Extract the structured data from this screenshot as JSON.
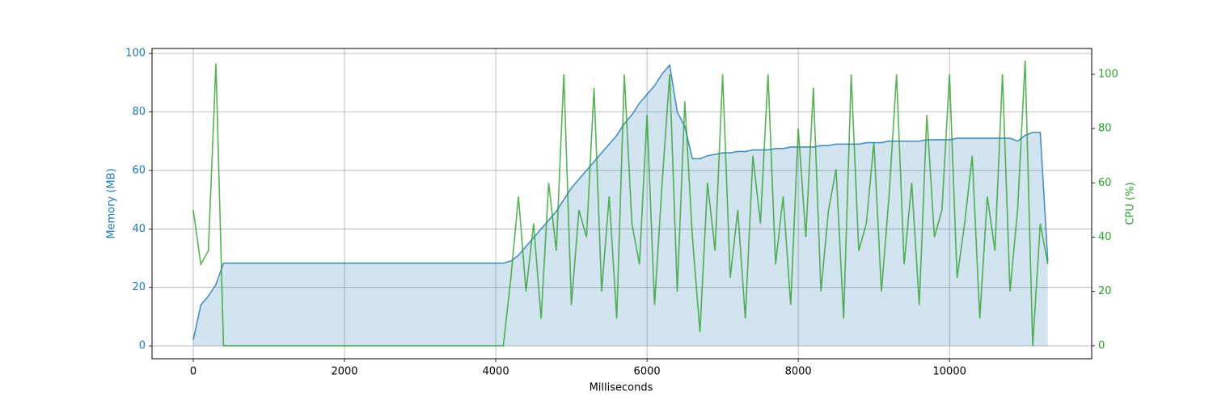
{
  "chart_data": {
    "type": "line",
    "xlabel": "Milliseconds",
    "ylabel": "Memory (MB)",
    "y2label": "CPU (%)",
    "x": [
      0,
      100,
      200,
      300,
      400,
      500,
      600,
      700,
      800,
      900,
      1000,
      1100,
      1200,
      1300,
      1400,
      1500,
      1600,
      1700,
      1800,
      1900,
      2000,
      2100,
      2200,
      2300,
      2400,
      2500,
      2600,
      2700,
      2800,
      2900,
      3000,
      3100,
      3200,
      3300,
      3400,
      3500,
      3600,
      3700,
      3800,
      3900,
      4000,
      4100,
      4200,
      4300,
      4400,
      4500,
      4600,
      4700,
      4800,
      4900,
      5000,
      5100,
      5200,
      5300,
      5400,
      5500,
      5600,
      5700,
      5800,
      5900,
      6000,
      6100,
      6200,
      6300,
      6400,
      6500,
      6600,
      6700,
      6800,
      6900,
      7000,
      7100,
      7200,
      7300,
      7400,
      7500,
      7600,
      7700,
      7800,
      7900,
      8000,
      8100,
      8200,
      8300,
      8400,
      8500,
      8600,
      8700,
      8800,
      8900,
      9000,
      9100,
      9200,
      9300,
      9400,
      9500,
      9600,
      9700,
      9800,
      9900,
      10000,
      10100,
      10200,
      10300,
      10400,
      10500,
      10600,
      10700,
      10800,
      10900,
      11000,
      11100,
      11200,
      11300
    ],
    "series": [
      {
        "name": "Memory",
        "color": "#1f77b4",
        "fill": true,
        "axis": "y",
        "values": [
          2,
          14,
          17,
          21,
          28.3,
          28.3,
          28.3,
          28.3,
          28.3,
          28.3,
          28.3,
          28.3,
          28.3,
          28.3,
          28.3,
          28.3,
          28.3,
          28.3,
          28.3,
          28.3,
          28.3,
          28.3,
          28.3,
          28.3,
          28.3,
          28.3,
          28.3,
          28.3,
          28.3,
          28.3,
          28.3,
          28.3,
          28.3,
          28.3,
          28.3,
          28.3,
          28.3,
          28.3,
          28.3,
          28.3,
          28.3,
          28.3,
          29,
          31,
          34,
          37,
          40,
          43,
          46,
          50,
          54,
          57,
          60,
          63,
          66,
          69,
          72,
          76,
          79,
          83,
          86,
          89,
          93,
          96,
          80,
          75,
          64,
          64,
          65,
          65.5,
          66,
          66,
          66.5,
          66.5,
          67,
          67,
          67,
          67.5,
          67.5,
          68,
          68,
          68,
          68,
          68.5,
          68.5,
          69,
          69,
          69,
          69,
          69.5,
          69.5,
          69.5,
          70,
          70,
          70,
          70,
          70,
          70.5,
          70.5,
          70.5,
          70.5,
          71,
          71,
          71,
          71,
          71,
          71,
          71,
          71,
          70,
          72,
          73,
          73,
          29
        ]
      },
      {
        "name": "CPU",
        "color": "#2ca02c",
        "fill": false,
        "axis": "y2",
        "values": [
          50,
          30,
          35,
          104,
          0,
          0,
          0,
          0,
          0,
          0,
          0,
          0,
          0,
          0,
          0,
          0,
          0,
          0,
          0,
          0,
          0,
          0,
          0,
          0,
          0,
          0,
          0,
          0,
          0,
          0,
          0,
          0,
          0,
          0,
          0,
          0,
          0,
          0,
          0,
          0,
          0,
          0,
          25,
          55,
          20,
          45,
          10,
          60,
          35,
          100,
          15,
          50,
          40,
          95,
          20,
          55,
          10,
          100,
          45,
          30,
          85,
          15,
          60,
          100,
          20,
          90,
          40,
          5,
          60,
          35,
          100,
          25,
          50,
          10,
          70,
          45,
          100,
          30,
          55,
          15,
          80,
          40,
          95,
          20,
          50,
          65,
          10,
          100,
          35,
          45,
          75,
          20,
          55,
          100,
          30,
          60,
          15,
          85,
          40,
          50,
          100,
          25,
          45,
          70,
          10,
          55,
          35,
          100,
          20,
          50,
          105,
          0,
          45,
          30
        ]
      }
    ],
    "xlim": [
      -545,
      11880
    ],
    "xticks": [
      0,
      2000,
      4000,
      6000,
      8000,
      10000
    ],
    "ylim": [
      -4.4,
      101.7
    ],
    "yticks": [
      0,
      20,
      40,
      60,
      80,
      100
    ],
    "y2lim": [
      -4.8,
      109.5
    ],
    "y2ticks": [
      0,
      20,
      40,
      60,
      80,
      100
    ],
    "grid": true
  }
}
